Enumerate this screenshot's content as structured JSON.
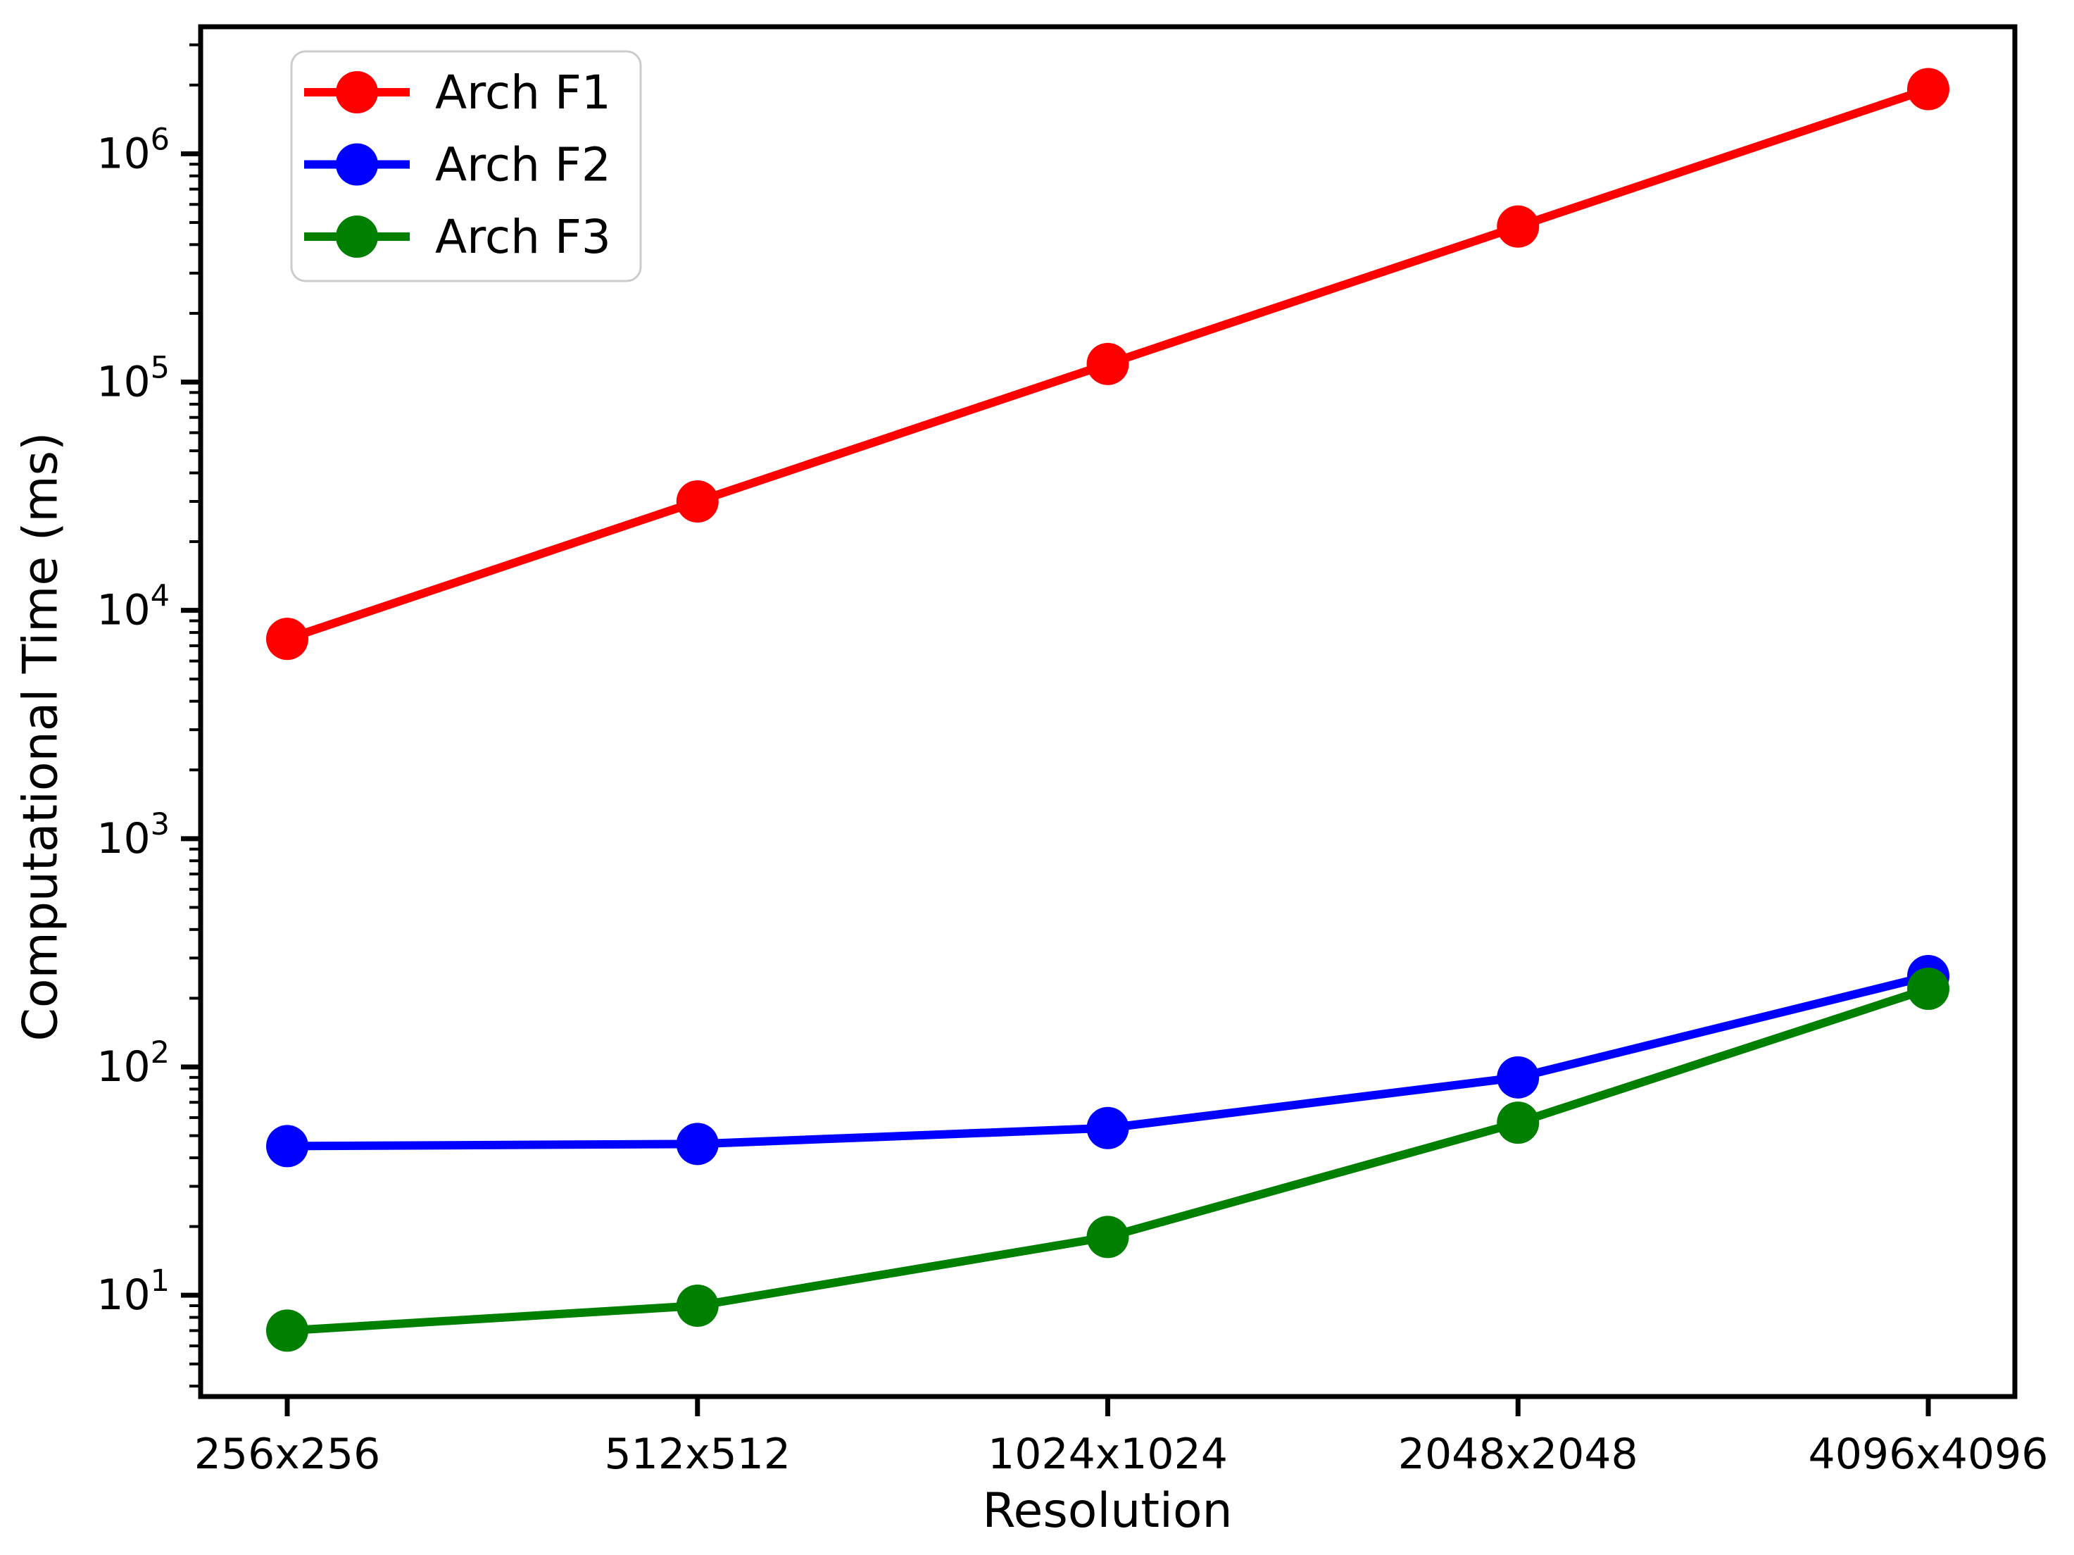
{
  "figure": {
    "background": "#ffffff",
    "axis_color": "#000000",
    "text_color": "#000000"
  },
  "chart_data": {
    "type": "line",
    "yscale": "log",
    "title": "",
    "xlabel": "Resolution",
    "ylabel": "Computational Time (ms)",
    "categories": [
      "256x256",
      "512x512",
      "1024x1024",
      "2048x2048",
      "4096x4096"
    ],
    "series": [
      {
        "name": "Arch F1",
        "color": "#ff0000",
        "marker": "o",
        "values": [
          7500,
          30000,
          120000,
          480000,
          1920000
        ]
      },
      {
        "name": "Arch F2",
        "color": "#0000ff",
        "marker": "o",
        "values": [
          45,
          46,
          54,
          90,
          250
        ]
      },
      {
        "name": "Arch F3",
        "color": "#008000",
        "marker": "o",
        "values": [
          7,
          9,
          18,
          57,
          220
        ]
      }
    ],
    "ylim": [
      3.6,
      3600000
    ],
    "y_tick_exponents": [
      1,
      2,
      3,
      4,
      5,
      6
    ],
    "y_tick_values": [
      10,
      100,
      1000,
      10000,
      100000,
      1000000
    ],
    "grid": false,
    "legend": {
      "position": "upper left",
      "entries": [
        "Arch F1",
        "Arch F2",
        "Arch F3"
      ]
    }
  }
}
